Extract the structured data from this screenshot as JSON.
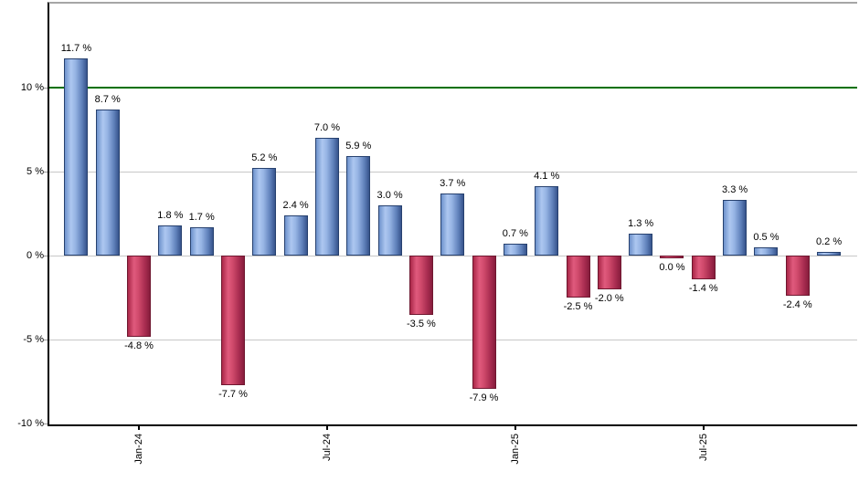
{
  "chart_data": {
    "type": "bar",
    "title": "",
    "xlabel": "",
    "ylabel": "",
    "ylim": [
      -10,
      15
    ],
    "grid": true,
    "legend": false,
    "value_label_format": "{value} %",
    "y_ticks": [
      {
        "value": 10,
        "label": "10 %"
      },
      {
        "value": 5,
        "label": "5 %"
      },
      {
        "value": 0,
        "label": "0 %"
      },
      {
        "value": -5,
        "label": "-5 %"
      },
      {
        "value": -10,
        "label": "-10 %"
      }
    ],
    "x_ticks": [
      {
        "bar_index": 2,
        "label": "Jan-24"
      },
      {
        "bar_index": 8,
        "label": "Jul-24"
      },
      {
        "bar_index": 14,
        "label": "Jan-25"
      },
      {
        "bar_index": 20,
        "label": "Jul-25"
      }
    ],
    "target_line": {
      "value": 10,
      "color": "#007000"
    },
    "bars": [
      {
        "value": 11.7,
        "label": "11.7 %"
      },
      {
        "value": 8.7,
        "label": "8.7 %"
      },
      {
        "value": -4.8,
        "label": "-4.8 %"
      },
      {
        "value": 1.8,
        "label": "1.8 %"
      },
      {
        "value": 1.7,
        "label": "1.7 %"
      },
      {
        "value": -7.7,
        "label": "-7.7 %"
      },
      {
        "value": 5.2,
        "label": "5.2 %"
      },
      {
        "value": 2.4,
        "label": "2.4 %"
      },
      {
        "value": 7.0,
        "label": "7.0 %"
      },
      {
        "value": 5.9,
        "label": "5.9 %"
      },
      {
        "value": 3.0,
        "label": "3.0 %"
      },
      {
        "value": -3.5,
        "label": "-3.5 %"
      },
      {
        "value": 3.7,
        "label": "3.7 %"
      },
      {
        "value": -7.9,
        "label": "-7.9 %"
      },
      {
        "value": 0.7,
        "label": "0.7 %"
      },
      {
        "value": 4.1,
        "label": "4.1 %"
      },
      {
        "value": -2.5,
        "label": "-2.5 %"
      },
      {
        "value": -2.0,
        "label": "-2.0 %"
      },
      {
        "value": 1.3,
        "label": "1.3 %"
      },
      {
        "value": 0.0,
        "label": "0.0 %"
      },
      {
        "value": -1.4,
        "label": "-1.4 %"
      },
      {
        "value": 3.3,
        "label": "3.3 %"
      },
      {
        "value": 0.5,
        "label": "0.5 %"
      },
      {
        "value": -2.4,
        "label": "-2.4 %"
      },
      {
        "value": 0.2,
        "label": "0.2 %"
      }
    ],
    "colors": {
      "positive": "#7E9FD6",
      "negative": "#C84066",
      "gridline": "#C8C8C8",
      "target_line": "#007000",
      "axis": "#000000",
      "frame_top": "#A6A6A6",
      "label_text": "#000000"
    }
  }
}
